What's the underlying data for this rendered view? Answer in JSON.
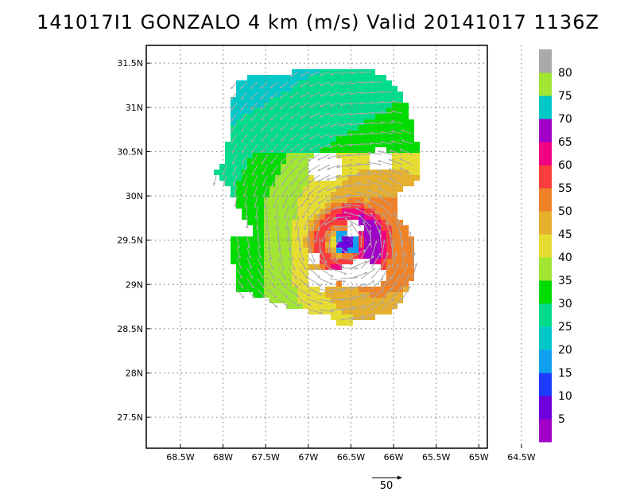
{
  "chart_data": {
    "type": "heatmap",
    "title": "141017I1 GONZALO 4 km (m/s) Valid 20141017 1136Z",
    "x_ticks": [
      "68.5W",
      "68W",
      "67.5W",
      "67W",
      "66.5W",
      "66W",
      "65.5W",
      "65W",
      "64.5W"
    ],
    "x_values": [
      -68.5,
      -68,
      -67.5,
      -67,
      -66.5,
      -66,
      -65.5,
      -65,
      -64.5
    ],
    "y_ticks": [
      "27.5N",
      "28N",
      "28.5N",
      "29N",
      "29.5N",
      "30N",
      "30.5N",
      "31N",
      "31.5N"
    ],
    "y_values": [
      27.5,
      28,
      28.5,
      29,
      29.5,
      30,
      30.5,
      31,
      31.5
    ],
    "xlim": [
      -68.9,
      -64.9
    ],
    "ylim": [
      27.15,
      31.7
    ],
    "grid": true,
    "center": {
      "lon": -66.55,
      "lat": 29.47
    },
    "colorbar": {
      "labels": [
        "5",
        "10",
        "15",
        "20",
        "25",
        "30",
        "35",
        "40",
        "45",
        "50",
        "55",
        "60",
        "65",
        "70",
        "75",
        "80"
      ],
      "colors": [
        "#a000c8",
        "#6e00dc",
        "#1e3cff",
        "#0fa0f0",
        "#00c8c8",
        "#00dc8c",
        "#00dc00",
        "#a0e632",
        "#e6dc32",
        "#e6af2d",
        "#f08228",
        "#fa3c3c",
        "#f00082",
        "#a000c8",
        "#00c8c8",
        "#a0e632",
        "#aaaaaa"
      ]
    },
    "reference_vector": {
      "value": 50,
      "label": "50"
    },
    "vector_color": "#a9a9a9"
  }
}
